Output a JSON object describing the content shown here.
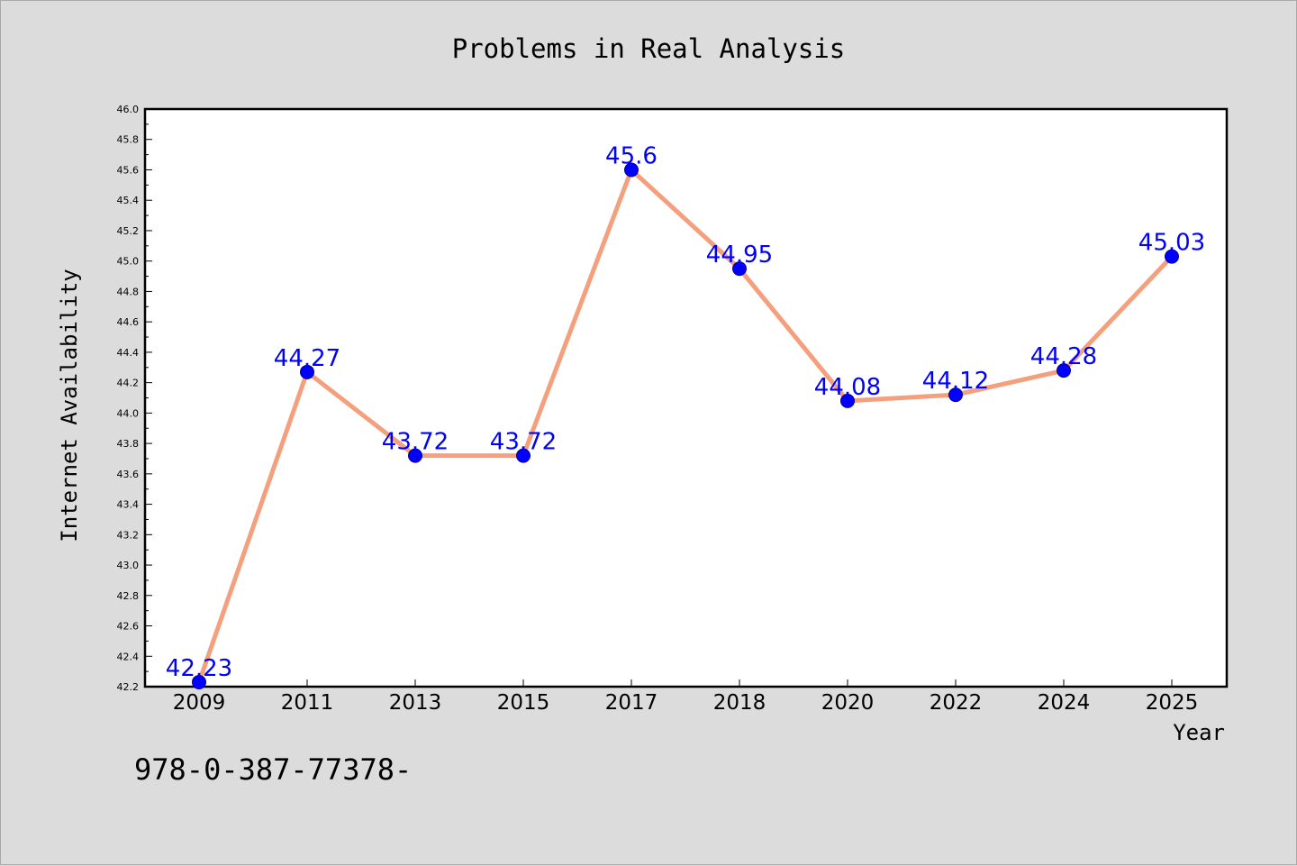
{
  "chart_data": {
    "type": "line",
    "title": "Problems in Real Analysis",
    "xlabel": "Year",
    "ylabel": "Internet Availability",
    "categories": [
      "2009",
      "2011",
      "2013",
      "2015",
      "2017",
      "2018",
      "2020",
      "2022",
      "2024",
      "2025"
    ],
    "values": [
      42.23,
      44.27,
      43.72,
      43.72,
      45.6,
      44.95,
      44.08,
      44.12,
      44.28,
      45.03
    ],
    "data_labels": [
      "42.23",
      "44.27",
      "43.72",
      "43.72",
      "45.6",
      "44.95",
      "44.08",
      "44.12",
      "44.28",
      "45.03"
    ],
    "ylim": [
      42.2,
      46.0
    ],
    "yticks": [
      "42.2",
      "42.4",
      "42.6",
      "42.8",
      "43.0",
      "43.2",
      "43.4",
      "43.6",
      "43.8",
      "44.0",
      "44.2",
      "44.4",
      "44.6",
      "44.8",
      "45.0",
      "45.2",
      "45.4",
      "45.6",
      "45.8",
      "46.0"
    ],
    "grid": false,
    "line_color": "#f4a07e",
    "marker_color": "#0000ff",
    "label_color": "#0000ff"
  },
  "footnote": "978-0-387-77378-"
}
